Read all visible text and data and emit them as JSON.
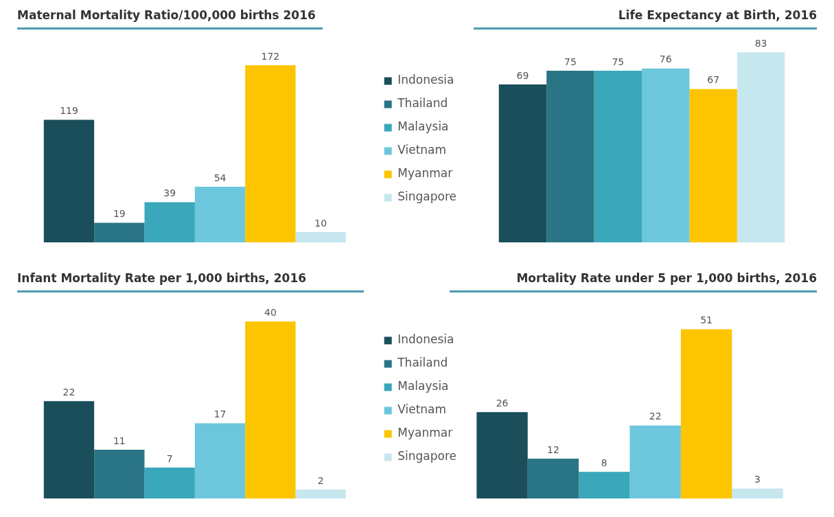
{
  "chart_data": [
    {
      "type": "bar",
      "title": "Maternal Mortality Ratio/100,000 births 2016",
      "categories": [
        null
      ],
      "data_labels": true,
      "grid": false,
      "legend": "right",
      "series": [
        {
          "name": "Indonesia",
          "color": "#1a4e5a",
          "values": [
            119
          ]
        },
        {
          "name": "Thailand",
          "color": "#2a7585",
          "values": [
            19
          ]
        },
        {
          "name": "Malaysia",
          "color": "#3aa7bb",
          "values": [
            39
          ]
        },
        {
          "name": "Vietnam",
          "color": "#6cc7dc",
          "values": [
            54
          ]
        },
        {
          "name": "Myanmar",
          "color": "#fcc500",
          "values": [
            172
          ]
        },
        {
          "name": "Singapore",
          "color": "#c7e7ef",
          "values": [
            10
          ]
        }
      ]
    },
    {
      "type": "bar",
      "title": "Life Expectancy at Birth, 2016",
      "categories": [
        null
      ],
      "data_labels": true,
      "grid": false,
      "series": [
        {
          "color": "#1a4e5a",
          "values": [
            69
          ]
        },
        {
          "color": "#2a7585",
          "values": [
            75
          ]
        },
        {
          "color": "#3aa7bb",
          "values": [
            75
          ]
        },
        {
          "color": "#6cc7dc",
          "values": [
            76
          ]
        },
        {
          "color": "#fcc500",
          "values": [
            67
          ]
        },
        {
          "color": "#c7e7ef",
          "values": [
            83
          ]
        }
      ]
    },
    {
      "type": "bar",
      "title": "Infant Mortality Rate per 1,000 births, 2016",
      "categories": [
        null
      ],
      "data_labels": true,
      "grid": false,
      "legend": "right",
      "series": [
        {
          "name": "Indonesia",
          "color": "#1a4e5a",
          "values": [
            22
          ]
        },
        {
          "name": "Thailand",
          "color": "#2a7585",
          "values": [
            11
          ]
        },
        {
          "name": "Malaysia",
          "color": "#3aa7bb",
          "values": [
            7
          ]
        },
        {
          "name": "Vietnam",
          "color": "#6cc7dc",
          "values": [
            17
          ]
        },
        {
          "name": "Myanmar",
          "color": "#fcc500",
          "values": [
            40
          ]
        },
        {
          "name": "Singapore",
          "color": "#c7e7ef",
          "values": [
            2
          ]
        }
      ]
    },
    {
      "type": "bar",
      "title": "Mortality Rate under 5 per 1,000 births, 2016",
      "categories": [
        null
      ],
      "data_labels": true,
      "grid": false,
      "series": [
        {
          "color": "#1a4e5a",
          "values": [
            26
          ]
        },
        {
          "color": "#2a7585",
          "values": [
            12
          ]
        },
        {
          "color": "#3aa7bb",
          "values": [
            8
          ]
        },
        {
          "color": "#6cc7dc",
          "values": [
            22
          ]
        },
        {
          "color": "#fcc500",
          "values": [
            51
          ]
        },
        {
          "color": "#c7e7ef",
          "values": [
            3
          ]
        }
      ]
    }
  ]
}
